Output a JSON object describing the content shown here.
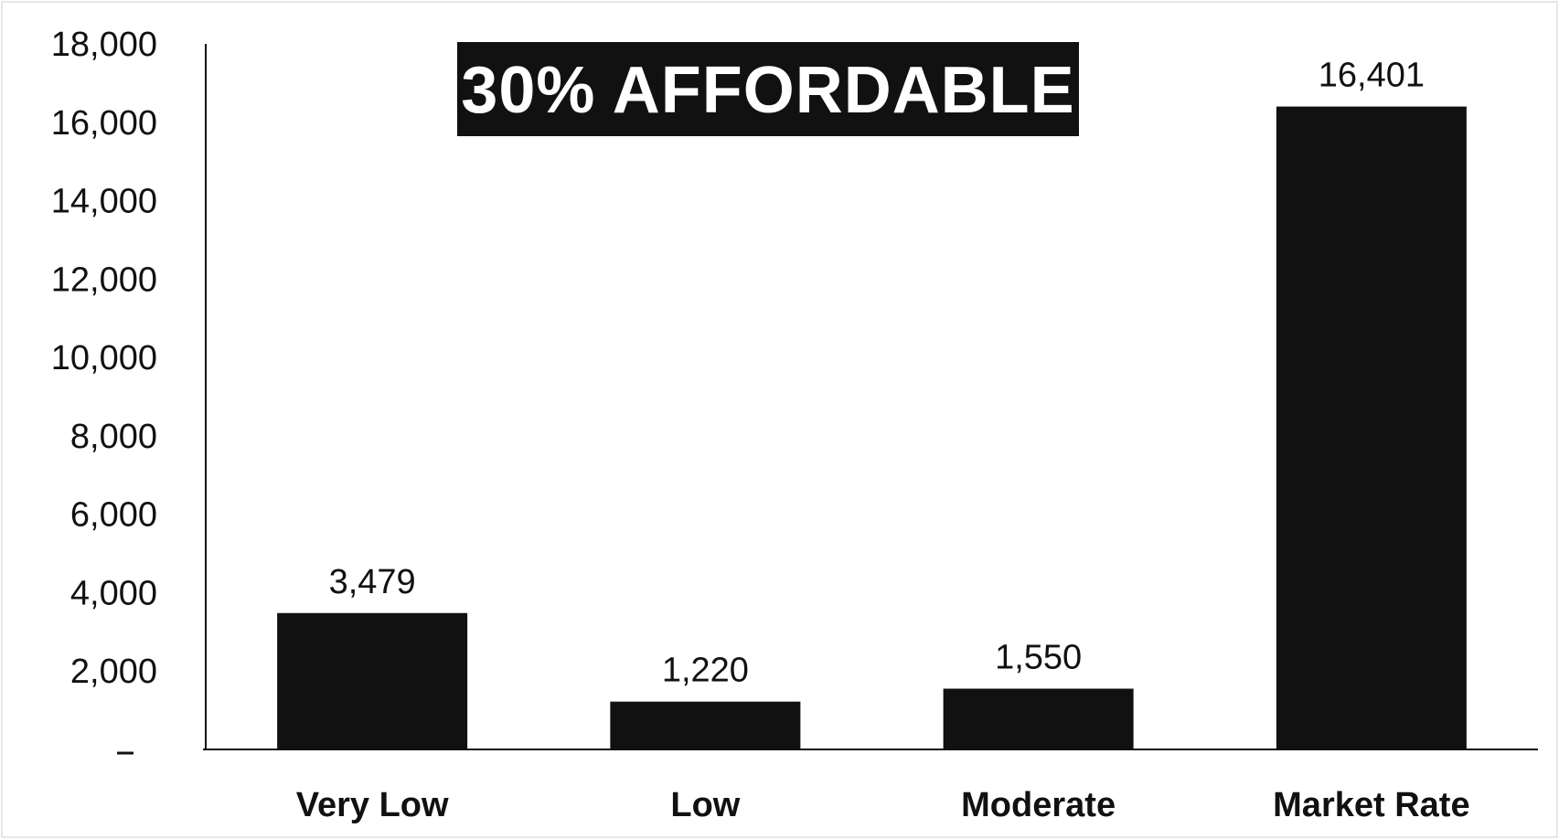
{
  "chart_data": {
    "type": "bar",
    "title": "30% AFFORDABLE",
    "categories": [
      "Very Low",
      "Low",
      "Moderate",
      "Market Rate"
    ],
    "values": [
      3479,
      1220,
      1550,
      16401
    ],
    "data_labels": [
      "3,479",
      "1,220",
      "1,550",
      "16,401"
    ],
    "ylim": [
      0,
      18000
    ],
    "yticks": [
      0,
      2000,
      4000,
      6000,
      8000,
      10000,
      12000,
      14000,
      16000,
      18000
    ],
    "ytick_labels": [
      "-",
      "2,000",
      "4,000",
      "6,000",
      "8,000",
      "10,000",
      "12,000",
      "14,000",
      "16,000",
      "18,000"
    ],
    "grid": false,
    "legend": "none",
    "bar_color": "#111111",
    "title_background": "#111111",
    "title_color": "#ffffff"
  }
}
